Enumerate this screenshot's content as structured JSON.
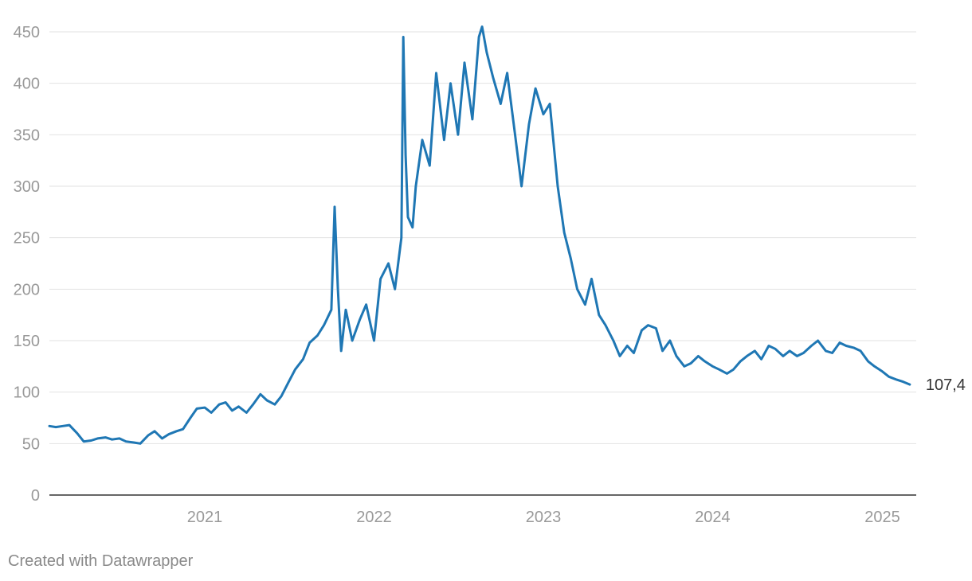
{
  "chart_data": {
    "type": "line",
    "title": "",
    "xlabel": "",
    "ylabel": "",
    "ylim": [
      0,
      450
    ],
    "yticks": [
      0,
      50,
      100,
      150,
      200,
      250,
      300,
      350,
      400,
      450
    ],
    "xticks": [
      "2021",
      "2022",
      "2023",
      "2024",
      "2025"
    ],
    "xlim": [
      "2020-02-01",
      "2025-03-15"
    ],
    "grid": true,
    "line_color": "#1f77b4",
    "end_label": "107,4",
    "series": [
      {
        "x": [
          "2020-02-01",
          "2020-02-15",
          "2020-03-01",
          "2020-03-15",
          "2020-04-01",
          "2020-04-15",
          "2020-05-01",
          "2020-05-15",
          "2020-06-01",
          "2020-06-15",
          "2020-07-01",
          "2020-07-15",
          "2020-08-01",
          "2020-08-15",
          "2020-09-01",
          "2020-09-15",
          "2020-10-01",
          "2020-10-15",
          "2020-11-01",
          "2020-11-15",
          "2020-12-01",
          "2020-12-15",
          "2021-01-01",
          "2021-01-15",
          "2021-02-01",
          "2021-02-15",
          "2021-03-01",
          "2021-03-15",
          "2021-04-01",
          "2021-04-15",
          "2021-05-01",
          "2021-05-15",
          "2021-06-01",
          "2021-06-15",
          "2021-07-01",
          "2021-07-15",
          "2021-08-01",
          "2021-08-15",
          "2021-09-01",
          "2021-09-15",
          "2021-10-01",
          "2021-10-08",
          "2021-10-15",
          "2021-10-22",
          "2021-11-01",
          "2021-11-15",
          "2021-12-01",
          "2021-12-15",
          "2022-01-01",
          "2022-01-15",
          "2022-02-01",
          "2022-02-15",
          "2022-03-01",
          "2022-03-05",
          "2022-03-10",
          "2022-03-15",
          "2022-03-25",
          "2022-04-01",
          "2022-04-15",
          "2022-05-01",
          "2022-05-15",
          "2022-06-01",
          "2022-06-15",
          "2022-07-01",
          "2022-07-15",
          "2022-08-01",
          "2022-08-15",
          "2022-08-22",
          "2022-09-01",
          "2022-09-15",
          "2022-10-01",
          "2022-10-15",
          "2022-11-01",
          "2022-11-15",
          "2022-12-01",
          "2022-12-15",
          "2023-01-01",
          "2023-01-15",
          "2023-02-01",
          "2023-02-15",
          "2023-03-01",
          "2023-03-15",
          "2023-04-01",
          "2023-04-15",
          "2023-05-01",
          "2023-05-15",
          "2023-06-01",
          "2023-06-15",
          "2023-07-01",
          "2023-07-15",
          "2023-08-01",
          "2023-08-15",
          "2023-09-01",
          "2023-09-15",
          "2023-10-01",
          "2023-10-15",
          "2023-11-01",
          "2023-11-15",
          "2023-12-01",
          "2023-12-15",
          "2024-01-01",
          "2024-01-15",
          "2024-02-01",
          "2024-02-15",
          "2024-03-01",
          "2024-03-15",
          "2024-04-01",
          "2024-04-15",
          "2024-05-01",
          "2024-05-15",
          "2024-06-01",
          "2024-06-15",
          "2024-07-01",
          "2024-07-15",
          "2024-08-01",
          "2024-08-15",
          "2024-09-01",
          "2024-09-15",
          "2024-10-01",
          "2024-10-15",
          "2024-11-01",
          "2024-11-15",
          "2024-12-01",
          "2024-12-15",
          "2025-01-01",
          "2025-01-15",
          "2025-02-01",
          "2025-02-15",
          "2025-03-01"
        ],
        "y": [
          67,
          66,
          67,
          68,
          60,
          52,
          53,
          55,
          56,
          54,
          55,
          52,
          51,
          50,
          58,
          62,
          55,
          59,
          62,
          64,
          75,
          84,
          85,
          80,
          88,
          90,
          82,
          86,
          80,
          88,
          98,
          92,
          88,
          96,
          110,
          122,
          132,
          148,
          155,
          165,
          180,
          280,
          200,
          140,
          180,
          150,
          170,
          185,
          150,
          210,
          225,
          200,
          250,
          445,
          330,
          270,
          260,
          300,
          345,
          320,
          410,
          345,
          400,
          350,
          420,
          365,
          445,
          455,
          430,
          405,
          380,
          410,
          350,
          300,
          360,
          395,
          370,
          380,
          300,
          255,
          230,
          200,
          185,
          210,
          175,
          165,
          150,
          135,
          145,
          138,
          160,
          165,
          162,
          140,
          150,
          135,
          125,
          128,
          135,
          130,
          125,
          122,
          118,
          122,
          130,
          135,
          140,
          132,
          145,
          142,
          135,
          140,
          135,
          138,
          145,
          150,
          140,
          138,
          148,
          145,
          143,
          140,
          130,
          125,
          120,
          115,
          112,
          110,
          107.4
        ]
      }
    ]
  },
  "footer": {
    "credit": "Created with Datawrapper"
  }
}
